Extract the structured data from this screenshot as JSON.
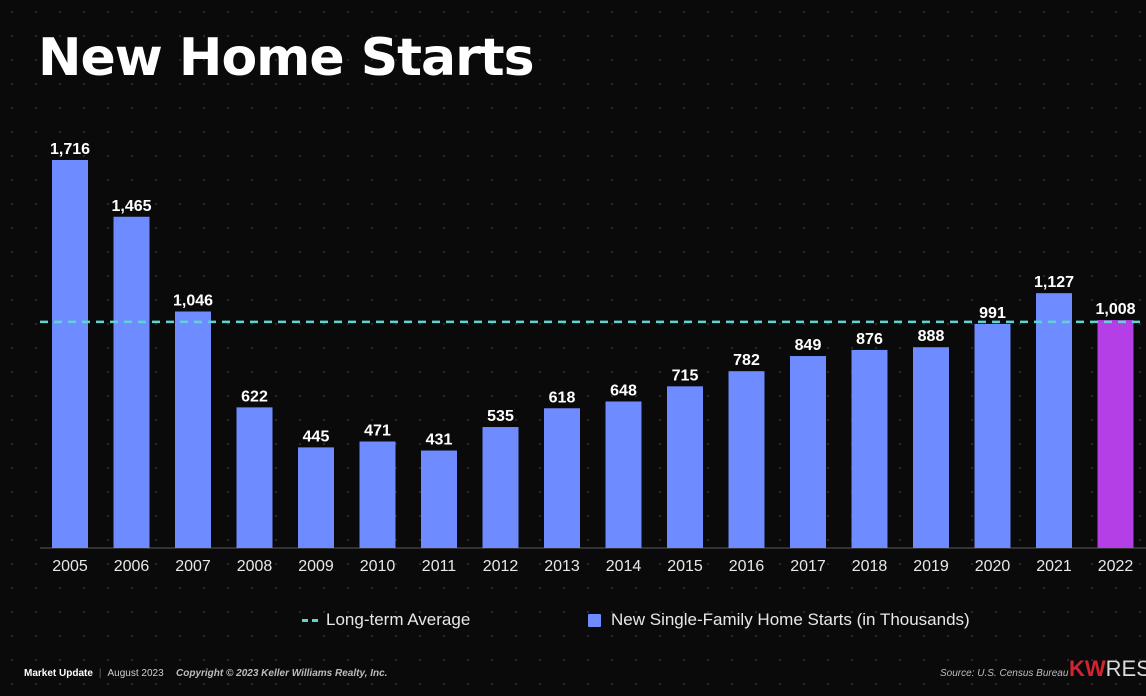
{
  "title": "New Home Starts",
  "chart_data": {
    "type": "bar",
    "categories": [
      "2005",
      "2006",
      "2007",
      "2008",
      "2009",
      "2010",
      "2011",
      "2012",
      "2013",
      "2014",
      "2015",
      "2016",
      "2017",
      "2018",
      "2019",
      "2020",
      "2021",
      "2022"
    ],
    "values": [
      1716,
      1465,
      1046,
      622,
      445,
      471,
      431,
      535,
      618,
      648,
      715,
      782,
      849,
      876,
      888,
      991,
      1127,
      1008
    ],
    "value_labels": [
      "1,716",
      "1,465",
      "1,046",
      "622",
      "445",
      "471",
      "431",
      "535",
      "618",
      "648",
      "715",
      "782",
      "849",
      "876",
      "888",
      "991",
      "1,127",
      "1,008"
    ],
    "long_term_average": 1000,
    "series": [
      {
        "name": "New Single-Family Home Starts (in Thousands)",
        "color": "#6e8bff"
      }
    ],
    "highlight": {
      "category": "2022",
      "color": "#b43fe6"
    },
    "average_line": {
      "label": "Long-term Average",
      "color": "#5fd3cf",
      "style": "dashed"
    },
    "ylim": [
      0,
      1716
    ],
    "grid": false,
    "legend_position": "bottom"
  },
  "footer": {
    "market_update": "Market Update",
    "date": "August 2023",
    "copyright": "Copyright © 2023 Keller Williams Realty, Inc.",
    "source": "Source: U.S. Census Bureau",
    "brand_kw": "KW",
    "brand_rest": "RES"
  }
}
